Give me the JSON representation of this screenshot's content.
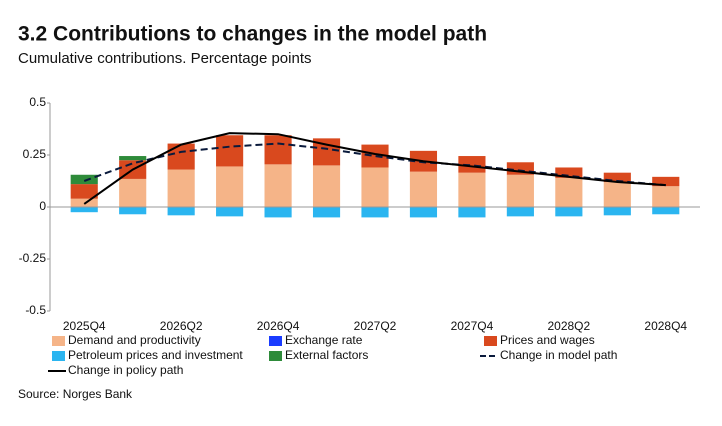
{
  "chart_data": {
    "type": "bar",
    "title": "3.2 Contributions to changes in the model path",
    "subtitle": "Cumulative contributions. Percentage points",
    "source": "Source: Norges Bank",
    "categories": [
      "2025Q4",
      null,
      "2026Q2",
      null,
      "2026Q4",
      null,
      "2027Q2",
      null,
      "2027Q4",
      null,
      "2028Q2",
      null,
      "2028Q4"
    ],
    "ylim": [
      -0.5,
      0.5
    ],
    "yticks": [
      0.5,
      0.25,
      0,
      -0.25,
      -0.5
    ],
    "series": [
      {
        "name": "Demand and productivity",
        "type": "bar",
        "color": "#f5b488",
        "values": [
          0.04,
          0.135,
          0.18,
          0.195,
          0.205,
          0.2,
          0.19,
          0.17,
          0.165,
          0.155,
          0.14,
          0.12,
          0.1
        ]
      },
      {
        "name": "Exchange rate",
        "type": "bar",
        "color": "#1a3cff",
        "values": [
          0,
          0,
          0,
          0,
          0,
          0,
          0,
          0,
          0,
          0,
          0,
          0,
          0
        ]
      },
      {
        "name": "Prices and wages",
        "type": "bar",
        "color": "#d9491e",
        "values": [
          0.07,
          0.09,
          0.125,
          0.15,
          0.14,
          0.13,
          0.11,
          0.1,
          0.08,
          0.06,
          0.05,
          0.045,
          0.045
        ]
      },
      {
        "name": "Petroleum prices and investment",
        "type": "bar",
        "color": "#2bb5f0",
        "values": [
          -0.025,
          -0.035,
          -0.04,
          -0.045,
          -0.05,
          -0.05,
          -0.05,
          -0.05,
          -0.05,
          -0.045,
          -0.045,
          -0.04,
          -0.035
        ]
      },
      {
        "name": "External factors",
        "type": "bar",
        "color": "#2e8b3a",
        "values": [
          0.045,
          0.02,
          0,
          0,
          0,
          0,
          0,
          0,
          0,
          0,
          0,
          0,
          0
        ]
      },
      {
        "name": "Change in model path",
        "type": "line",
        "dashed": true,
        "color": "#0a1a3c",
        "values": [
          0.125,
          0.21,
          0.265,
          0.29,
          0.305,
          0.28,
          0.245,
          0.215,
          0.2,
          0.175,
          0.15,
          0.125,
          0.105
        ]
      },
      {
        "name": "Change in policy path",
        "type": "line",
        "dashed": false,
        "color": "#000000",
        "values": [
          0.015,
          0.18,
          0.3,
          0.355,
          0.35,
          0.3,
          0.255,
          0.22,
          0.195,
          0.17,
          0.145,
          0.12,
          0.105
        ]
      }
    ]
  }
}
